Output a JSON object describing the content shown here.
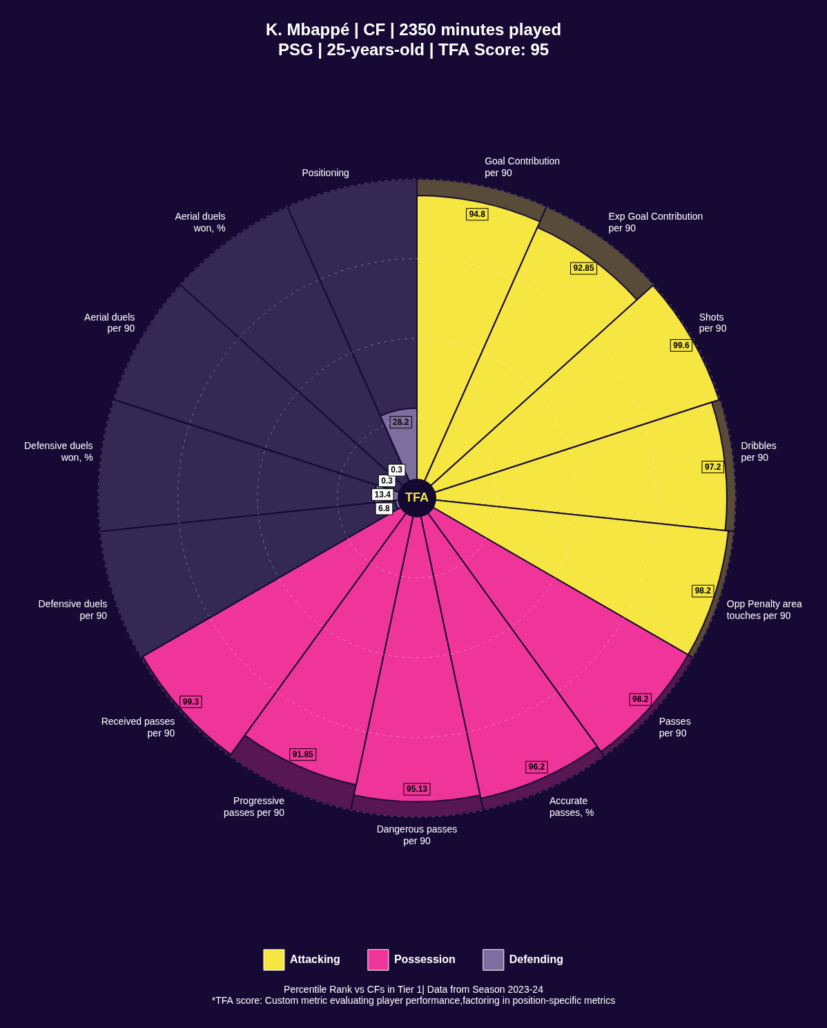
{
  "chart_data": {
    "type": "polarArea",
    "title": [
      "K. Mbappé | CF | 2350 minutes played",
      "PSG | 25-years-old | TFA Score: 95"
    ],
    "subtitle": [
      "Percentile Rank vs CFs in Tier 1| Data from Season 2023-24",
      "*TFA score: Custom metric evaluating player performance,factoring in position-specific metrics"
    ],
    "annotations": [
      "TFA"
    ],
    "categories": [
      "Goal Contribution\nper 90",
      "Exp Goal Contribution\nper 90",
      "Shots\nper 90",
      "Dribbles\nper 90",
      "Opp Penalty area\ntouches per 90",
      "Passes\nper 90",
      "Accurate\npasses, %",
      "Dangerous passes\nper 90",
      "Progressive\npasses per 90",
      "Received passes\nper 90",
      "Defensive duels\nper 90",
      "Defensive duels\nwon, %",
      "Aerial duels\nper 90",
      "Aerial duels\nwon, %",
      "Positioning"
    ],
    "series": [
      {
        "name": "Attacking",
        "color": "#f5e642",
        "values": [
          94.8,
          92.85,
          99.6,
          97.2,
          98.2,
          null,
          null,
          null,
          null,
          null,
          null,
          null,
          null,
          null,
          null
        ]
      },
      {
        "name": "Possession",
        "color": "#f0359a",
        "values": [
          null,
          null,
          null,
          null,
          null,
          98.2,
          96.2,
          95.13,
          91.85,
          99.3,
          null,
          null,
          null,
          null,
          null
        ]
      },
      {
        "name": "Defending",
        "color": "#7c6fa0",
        "values": [
          null,
          null,
          null,
          null,
          null,
          null,
          null,
          null,
          null,
          null,
          6.8,
          13.4,
          0.3,
          0.3,
          28.2
        ]
      }
    ],
    "ylim": [
      0,
      100
    ],
    "yticks": [
      0,
      25,
      50,
      75,
      100
    ],
    "grid": true,
    "tick_labels": false,
    "legend": "bottom",
    "data_labels": true
  }
}
